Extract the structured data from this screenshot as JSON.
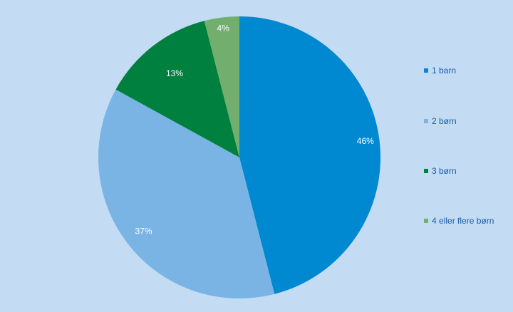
{
  "chart_data": {
    "type": "pie",
    "slices": [
      {
        "label": "1 barn",
        "value": 46,
        "value_label": "46%",
        "color": "#0088d1"
      },
      {
        "label": "2 børn",
        "value": 37,
        "value_label": "37%",
        "color": "#79b4e4"
      },
      {
        "label": "3 børn",
        "value": 13,
        "value_label": "13%",
        "color": "#00803e"
      },
      {
        "label": "4 eller flere børn",
        "value": 4,
        "value_label": "4%",
        "color": "#72ae6e"
      }
    ],
    "start_angle": "12 o'clock",
    "direction": "clockwise",
    "legend_placement": "right"
  },
  "colors": {
    "background": "#c3dcf3",
    "legend_text": "#1a5aa8",
    "label_text": "#ffffff"
  }
}
